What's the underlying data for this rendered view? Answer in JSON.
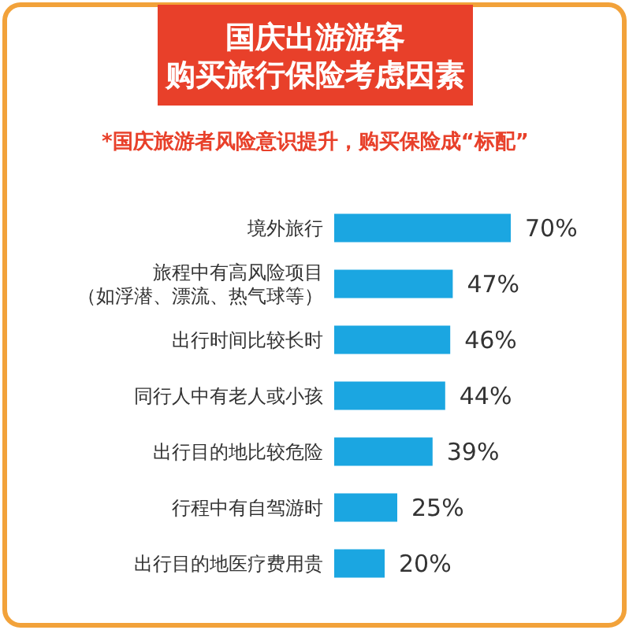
{
  "chart_data": {
    "type": "bar",
    "orientation": "horizontal",
    "title": "国庆出游游客购买旅行保险考虑因素",
    "subtitle": "*国庆旅游者风险意识提升，购买保险成“标配”",
    "categories": [
      "境外旅行",
      "旅程中有高风险项目（如浮潜、漂流、热气球等）",
      "出行时间比较长时",
      "同行人中有老人或小孩",
      "出行目的地比较危险",
      "行程中有自驾游时",
      "出行目的地医疗费用贵"
    ],
    "values": [
      70,
      47,
      46,
      44,
      39,
      25,
      20
    ],
    "value_labels": [
      "70%",
      "47%",
      "46%",
      "44%",
      "39%",
      "25%",
      "20%"
    ],
    "color": "#1ba6e1"
  }
}
